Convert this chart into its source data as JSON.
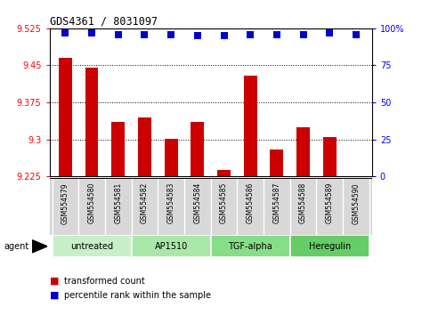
{
  "title": "GDS4361 / 8031097",
  "samples": [
    "GSM554579",
    "GSM554580",
    "GSM554581",
    "GSM554582",
    "GSM554583",
    "GSM554584",
    "GSM554585",
    "GSM554586",
    "GSM554587",
    "GSM554588",
    "GSM554589",
    "GSM554590"
  ],
  "bar_values": [
    9.465,
    9.445,
    9.335,
    9.345,
    9.302,
    9.335,
    9.238,
    9.43,
    9.28,
    9.325,
    9.305,
    9.226
  ],
  "percentile_values": [
    97,
    97,
    96,
    96,
    96,
    95,
    95,
    96,
    96,
    96,
    97,
    96
  ],
  "bar_color": "#cc0000",
  "percentile_color": "#0000cc",
  "ymin": 9.225,
  "ymax": 9.525,
  "yticks": [
    9.225,
    9.3,
    9.375,
    9.45,
    9.525
  ],
  "ytick_labels": [
    "9.225",
    "9.3",
    "9.375",
    "9.45",
    "9.525"
  ],
  "right_yticks": [
    0,
    25,
    50,
    75,
    100
  ],
  "right_ytick_labels": [
    "0",
    "25",
    "50",
    "75",
    "100%"
  ],
  "grid_yticks": [
    9.3,
    9.375,
    9.45
  ],
  "groups": [
    {
      "label": "untreated",
      "start": 0,
      "end": 3
    },
    {
      "label": "AP1510",
      "start": 3,
      "end": 6
    },
    {
      "label": "TGF-alpha",
      "start": 6,
      "end": 9
    },
    {
      "label": "Heregulin",
      "start": 9,
      "end": 12
    }
  ],
  "group_colors": [
    "#c8f0c8",
    "#aae8aa",
    "#88dd88",
    "#66cc66"
  ],
  "legend_bar_label": "transformed count",
  "legend_pct_label": "percentile rank within the sample",
  "agent_label": "agent",
  "background_color": "#ffffff",
  "sample_area_color": "#d8d8d8",
  "bar_width": 0.5
}
